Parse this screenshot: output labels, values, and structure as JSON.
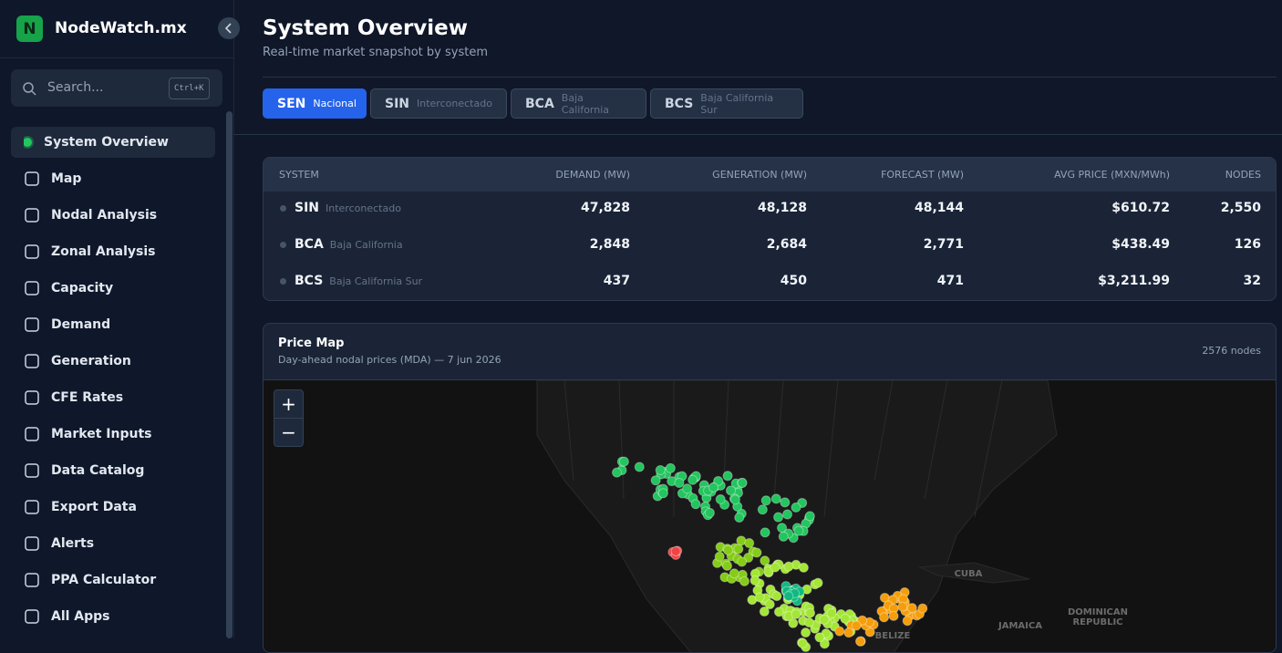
{
  "sidebar": {
    "brand_initial": "N",
    "brand": "NodeWatch.mx",
    "search": "Search...",
    "shortcut": "Ctrl+K",
    "nav": [
      "System Overview",
      "Map",
      "Nodal Analysis",
      "Zonal Analysis",
      "Capacity",
      "Demand",
      "Generation",
      "CFE Rates",
      "Market Inputs",
      "Data Catalog",
      "Export Data",
      "Alerts",
      "PPA Calculator",
      "All Apps"
    ]
  },
  "header": {
    "title": "System Overview",
    "subtitle": "Real-time market snapshot by system"
  },
  "tabs": [
    {
      "code": "SEN",
      "name": "Nacional"
    },
    {
      "code": "SIN",
      "name": "Interconectado"
    },
    {
      "code": "BCA",
      "name": "Baja California"
    },
    {
      "code": "BCS",
      "name": "Baja California Sur"
    }
  ],
  "table": {
    "columns": [
      "SYSTEM",
      "DEMAND (MW)",
      "GENERATION (MW)",
      "FORECAST (MW)",
      "AVG PRICE (MXN/MWh)",
      "NODES"
    ],
    "rows": [
      {
        "code": "SIN",
        "name": "Interconectado",
        "cells": [
          "47,828",
          "48,128",
          "48,144",
          "$610.72",
          "2,550"
        ]
      },
      {
        "code": "BCA",
        "name": "Baja California",
        "cells": [
          "2,848",
          "2,684",
          "2,771",
          "$438.49",
          "126"
        ]
      },
      {
        "code": "BCS",
        "name": "Baja California Sur",
        "cells": [
          "437",
          "450",
          "471",
          "$3,211.99",
          "32"
        ]
      }
    ]
  },
  "price_map": {
    "title": "Price Map",
    "subtitle": "Day-ahead nodal prices (MDA) — 7 jun 2026",
    "count": "2576 nodes",
    "zoom_in": "+",
    "zoom_out": "−",
    "labels": [
      "CUBA",
      "JAMAICA",
      "DOMINICAN",
      "REPUBLIC",
      "BELIZE"
    ]
  }
}
